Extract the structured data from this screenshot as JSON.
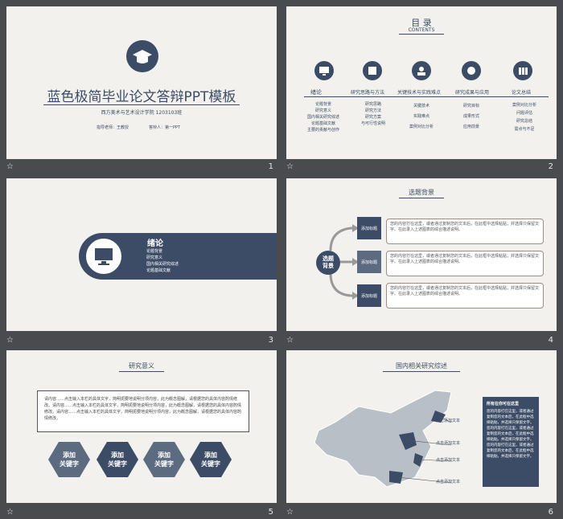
{
  "slides": [
    {
      "number": "1",
      "title": "蓝色极简毕业论文答辩PPT模板",
      "subtitle": "西方美术与艺术设计学院 1203103班",
      "advisor": "指导老师：王教授",
      "presenter": "答辩人：第一PPT"
    },
    {
      "number": "2",
      "title": "目 录",
      "subtitle": "CONTENTS",
      "items": [
        {
          "label": "绪论",
          "subs": [
            "论题背景",
            "研究意义",
            "国内相关研究综述",
            "论题基础文献",
            "主要的贡献与创作"
          ]
        },
        {
          "label": "研究思路与方法",
          "subs": [
            "研究思路",
            "研究方法",
            "研究方案",
            "与可行性说明"
          ]
        },
        {
          "label": "关键技术与实践难点",
          "subs": [
            "关键技术",
            "实践难点",
            "案例对比分析"
          ]
        },
        {
          "label": "研究成果与应用",
          "subs": [
            "研究目标",
            "成果形式",
            "应用前景"
          ]
        },
        {
          "label": "论文总结",
          "subs": [
            "案例对比分析",
            "问题评估",
            "研究总结",
            "需点与不足"
          ]
        }
      ]
    },
    {
      "number": "3",
      "title": "绪论",
      "items": [
        "论题背景",
        "研究意义",
        "国内相关研究综述",
        "论题基础文献"
      ]
    },
    {
      "number": "4",
      "title": "选题背景",
      "center": "选题背景",
      "tag": "添加标题",
      "body": "您的内容打在这里，或者通过复制您的文本后，在此框中选择粘贴，并选择只保留文字。在此录入上述图表的综合描述说明。"
    },
    {
      "number": "5",
      "title": "研究意义",
      "body": "请内容……点击输入本栏的具体文字，简明扼要地说明分项内容，此为概念图解，请根据您的具体内容酌情修改。请内容……点击输入本栏的具体文字，简明扼要地说明分项内容，此为概念图解，请根据您的具体内容酌情修改。请内容……点击输入本栏的具体文字，简明扼要地说明分项内容，此为概念图解，请根据您的具体内容酌情修改。",
      "hex": [
        "添加\n关键字",
        "添加\n关键字",
        "添加\n关键字",
        "添加\n关键字"
      ]
    },
    {
      "number": "6",
      "title": "国内相关研究综述",
      "tag": "点击添加文本",
      "side_title": "所有在你可在这里",
      "side_body": "您的内容打在这里，或者通过复制您的文本后，在此框中选择粘贴，并选择只保留文字。您的内容打在这里，或者通过复制您的文本后，在此框中选择粘贴。并选择只保留文字。您的内容打在这里，或者通过复制您的文本后，在此框中选择粘贴，并选择只保留文字。"
    }
  ],
  "star": "☆"
}
